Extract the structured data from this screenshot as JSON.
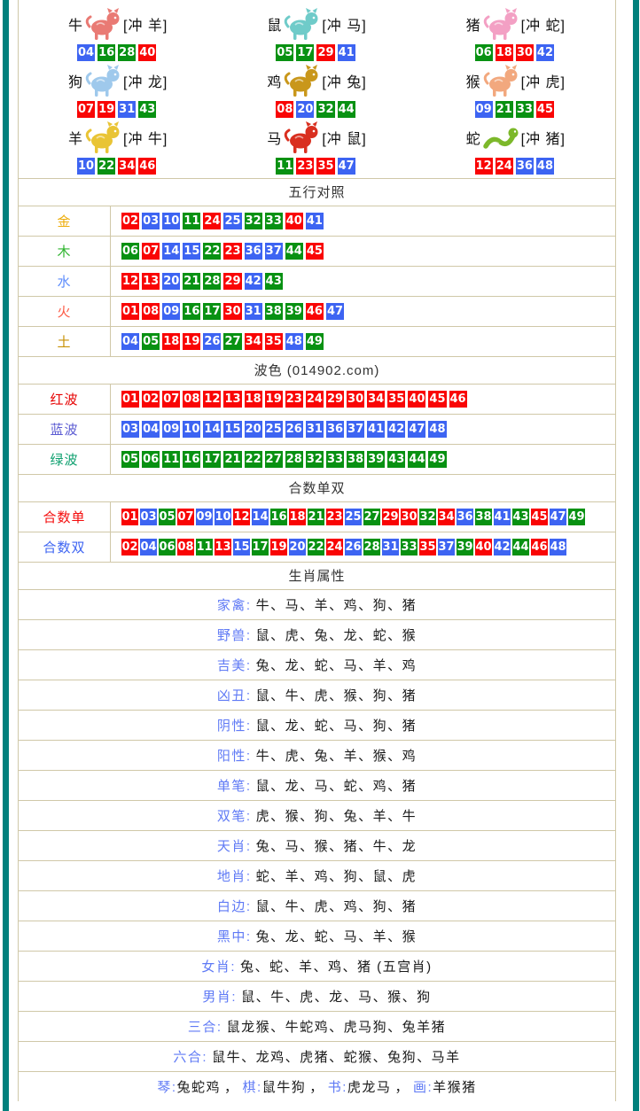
{
  "colors": {
    "frame": "#00807C",
    "border": "#D0C8A8",
    "badge_red": "#F90505",
    "badge_blue": "#3D64F2",
    "badge_green": "#089112",
    "attr_label": "#5F7AF5"
  },
  "zodiac_grid": {
    "rows": [
      [
        {
          "name": "牛",
          "clash": "[冲 羊]",
          "animal": "ox",
          "icon": "ox-icon",
          "color": "#E97A74",
          "numbers": [
            "04",
            "16",
            "28",
            "40"
          ]
        },
        {
          "name": "鼠",
          "clash": "[冲 马]",
          "animal": "rat",
          "icon": "rat-icon",
          "color": "#6FCBC9",
          "numbers": [
            "05",
            "17",
            "29",
            "41"
          ]
        },
        {
          "name": "猪",
          "clash": "[冲 蛇]",
          "animal": "pig",
          "icon": "pig-icon",
          "color": "#F3A0C4",
          "numbers": [
            "06",
            "18",
            "30",
            "42"
          ]
        }
      ],
      [
        {
          "name": "狗",
          "clash": "[冲 龙]",
          "animal": "dog",
          "icon": "dog-icon",
          "color": "#9FC9EC",
          "numbers": [
            "07",
            "19",
            "31",
            "43"
          ]
        },
        {
          "name": "鸡",
          "clash": "[冲 兔]",
          "animal": "rooster",
          "icon": "rooster-icon",
          "color": "#C9971B",
          "numbers": [
            "08",
            "20",
            "32",
            "44"
          ]
        },
        {
          "name": "猴",
          "clash": "[冲 虎]",
          "animal": "monkey",
          "icon": "monkey-icon",
          "color": "#F2A87E",
          "numbers": [
            "09",
            "21",
            "33",
            "45"
          ]
        }
      ],
      [
        {
          "name": "羊",
          "clash": "[冲 牛]",
          "animal": "goat",
          "icon": "goat-icon",
          "color": "#E9C435",
          "numbers": [
            "10",
            "22",
            "34",
            "46"
          ]
        },
        {
          "name": "马",
          "clash": "[冲 鼠]",
          "animal": "horse",
          "icon": "horse-icon",
          "color": "#D92F1F",
          "numbers": [
            "11",
            "23",
            "35",
            "47"
          ]
        },
        {
          "name": "蛇",
          "clash": "[冲 猪]",
          "animal": "snake",
          "icon": "snake-icon",
          "color": "#7CB82A",
          "numbers": [
            "12",
            "24",
            "36",
            "48"
          ]
        }
      ]
    ]
  },
  "five_elements": {
    "title": "五行对照",
    "rows": [
      {
        "label": "金",
        "color": "#EDAD0B",
        "numbers": [
          "02",
          "03",
          "10",
          "11",
          "24",
          "25",
          "32",
          "33",
          "40",
          "41"
        ]
      },
      {
        "label": "木",
        "color": "#2EB42E",
        "numbers": [
          "06",
          "07",
          "14",
          "15",
          "22",
          "23",
          "36",
          "37",
          "44",
          "45"
        ]
      },
      {
        "label": "水",
        "color": "#5C8CFC",
        "numbers": [
          "12",
          "13",
          "20",
          "21",
          "28",
          "29",
          "42",
          "43"
        ]
      },
      {
        "label": "火",
        "color": "#FC5A45",
        "numbers": [
          "01",
          "08",
          "09",
          "16",
          "17",
          "30",
          "31",
          "38",
          "39",
          "46",
          "47"
        ]
      },
      {
        "label": "土",
        "color": "#C79104",
        "numbers": [
          "04",
          "05",
          "18",
          "19",
          "26",
          "27",
          "34",
          "35",
          "48",
          "49"
        ]
      }
    ]
  },
  "waves": {
    "title": "波色 (014902.com)",
    "rows": [
      {
        "label": "红波",
        "color": "#E60000",
        "wave": "red",
        "numbers": [
          "01",
          "02",
          "07",
          "08",
          "12",
          "13",
          "18",
          "19",
          "23",
          "24",
          "29",
          "30",
          "34",
          "35",
          "40",
          "45",
          "46"
        ]
      },
      {
        "label": "蓝波",
        "color": "#5A5AD2",
        "wave": "blue",
        "numbers": [
          "03",
          "04",
          "09",
          "10",
          "14",
          "15",
          "20",
          "25",
          "26",
          "31",
          "36",
          "37",
          "41",
          "42",
          "47",
          "48"
        ]
      },
      {
        "label": "绿波",
        "color": "#0C9F6E",
        "wave": "green",
        "numbers": [
          "05",
          "06",
          "11",
          "16",
          "17",
          "21",
          "22",
          "27",
          "28",
          "32",
          "33",
          "38",
          "39",
          "43",
          "44",
          "49"
        ]
      }
    ]
  },
  "sum_parity": {
    "title": "合数单双",
    "rows": [
      {
        "label": "合数单",
        "color": "#F40B0B",
        "numbers": [
          "01",
          "03",
          "05",
          "07",
          "09",
          "10",
          "12",
          "14",
          "16",
          "18",
          "21",
          "23",
          "25",
          "27",
          "29",
          "30",
          "32",
          "34",
          "36",
          "38",
          "41",
          "43",
          "45",
          "47",
          "49"
        ]
      },
      {
        "label": "合数双",
        "color": "#3D64F2",
        "numbers": [
          "02",
          "04",
          "06",
          "08",
          "11",
          "13",
          "15",
          "17",
          "19",
          "20",
          "22",
          "24",
          "26",
          "28",
          "31",
          "33",
          "35",
          "37",
          "39",
          "40",
          "42",
          "44",
          "46",
          "48"
        ]
      }
    ]
  },
  "attributes": {
    "title": "生肖属性",
    "rows": [
      {
        "label": "家禽",
        "text": "牛、马、羊、鸡、狗、猪"
      },
      {
        "label": "野兽",
        "text": "鼠、虎、兔、龙、蛇、猴"
      },
      {
        "label": "吉美",
        "text": "兔、龙、蛇、马、羊、鸡"
      },
      {
        "label": "凶丑",
        "text": "鼠、牛、虎、猴、狗、猪"
      },
      {
        "label": "阴性",
        "text": "鼠、龙、蛇、马、狗、猪"
      },
      {
        "label": "阳性",
        "text": "牛、虎、兔、羊、猴、鸡"
      },
      {
        "label": "单笔",
        "text": "鼠、龙、马、蛇、鸡、猪"
      },
      {
        "label": "双笔",
        "text": "虎、猴、狗、兔、羊、牛"
      },
      {
        "label": "天肖",
        "text": "兔、马、猴、猪、牛、龙"
      },
      {
        "label": "地肖",
        "text": "蛇、羊、鸡、狗、鼠、虎"
      },
      {
        "label": "白边",
        "text": "鼠、牛、虎、鸡、狗、猪"
      },
      {
        "label": "黑中",
        "text": "兔、龙、蛇、马、羊、猴"
      },
      {
        "label": "女肖",
        "text": "兔、蛇、羊、鸡、猪 (五宫肖)"
      },
      {
        "label": "男肖",
        "text": "鼠、牛、虎、龙、马、猴、狗"
      },
      {
        "label": "三合",
        "text": "鼠龙猴、牛蛇鸡、虎马狗、兔羊猪"
      },
      {
        "label": "六合",
        "text": "鼠牛、龙鸡、虎猪、蛇猴、兔狗、马羊"
      }
    ],
    "footer_items": [
      {
        "label": "琴",
        "text": "兔蛇鸡"
      },
      {
        "label": "棋",
        "text": "鼠牛狗"
      },
      {
        "label": "书",
        "text": "虎龙马"
      },
      {
        "label": "画",
        "text": "羊猴猪"
      }
    ],
    "footer_separator": "，"
  }
}
